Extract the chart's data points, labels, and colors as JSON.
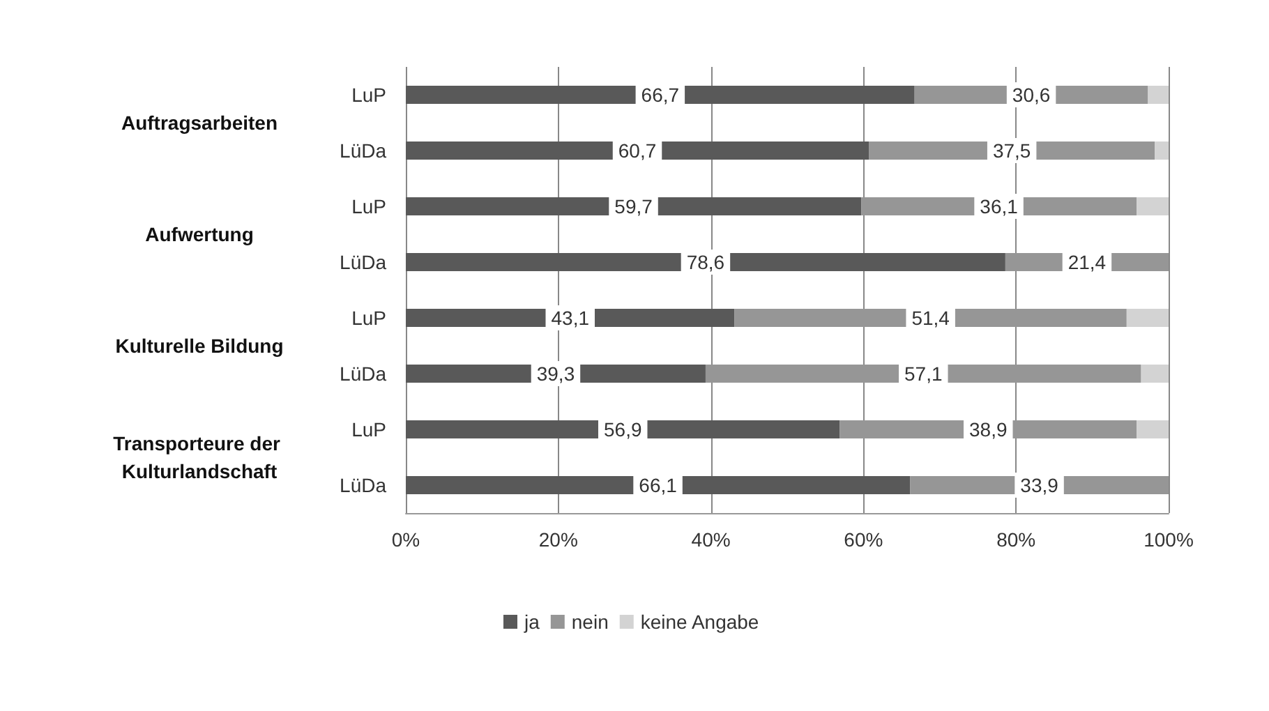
{
  "chart_data": {
    "type": "bar",
    "orientation": "horizontal",
    "stacked": true,
    "categories": [
      "LuP",
      "LüDa",
      "LuP",
      "LüDa",
      "LuP",
      "LüDa",
      "LuP",
      "LüDa"
    ],
    "annotations": [
      "Auftragsarbeiten",
      "Aufwertung",
      "Kulturelle Bildung",
      "Transporteure der Kulturlandschaft"
    ],
    "series": [
      {
        "name": "ja",
        "color": "#595959",
        "values": [
          66.7,
          60.7,
          59.7,
          78.6,
          43.1,
          39.3,
          56.9,
          66.1
        ],
        "value_labels": [
          "66,7",
          "60,7",
          "59,7",
          "78,6",
          "43,1",
          "39,3",
          "56,9",
          "66,1"
        ]
      },
      {
        "name": "nein",
        "color": "#969696",
        "values": [
          30.6,
          37.5,
          36.1,
          21.4,
          51.4,
          57.1,
          38.9,
          33.9
        ],
        "value_labels": [
          "30,6",
          "37,5",
          "36,1",
          "21,4",
          "51,4",
          "57,1",
          "38,9",
          "33,9"
        ]
      },
      {
        "name": "keine Angabe",
        "color": "#d3d3d3",
        "values": [
          2.7,
          1.8,
          4.2,
          0,
          5.5,
          3.6,
          4.2,
          0
        ]
      }
    ],
    "xlim": [
      0,
      100
    ],
    "xticks": [
      {
        "value": 0,
        "label": "0%"
      },
      {
        "value": 20,
        "label": "20%"
      },
      {
        "value": 40,
        "label": "40%"
      },
      {
        "value": 60,
        "label": "60%"
      },
      {
        "value": 80,
        "label": "80%"
      },
      {
        "value": 100,
        "label": "100%"
      }
    ],
    "grid": "x",
    "legend": "bottom"
  }
}
